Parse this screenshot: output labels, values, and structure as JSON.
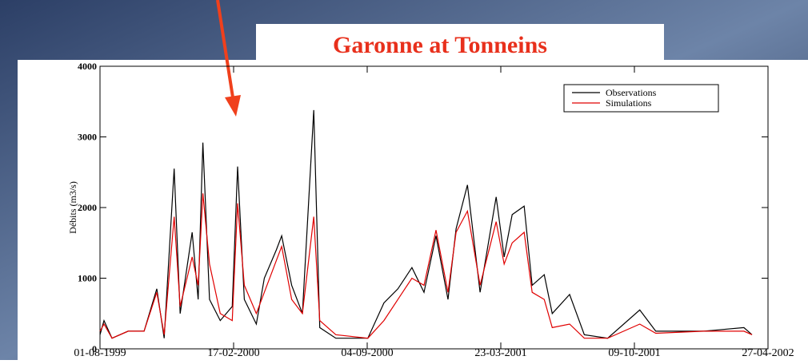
{
  "chart_data": {
    "type": "line",
    "title": "Garonne at Tonneins",
    "y_label": "Débits (m3/s)",
    "x": [
      "01-08-1999",
      "07-08-1999",
      "19-08-1999",
      "12-09-1999",
      "06-10-1999",
      "25-10-1999",
      "05-11-1999",
      "20-11-1999",
      "29-11-1999",
      "17-12-1999",
      "26-12-1999",
      "02-01-2000",
      "12-01-2000",
      "28-01-2000",
      "15-02-2000",
      "23-02-2000",
      "04-03-2000",
      "22-03-2000",
      "03-04-2000",
      "21-04-2000",
      "29-04-2000",
      "14-05-2000",
      "30-05-2000",
      "16-06-2000",
      "25-06-2000",
      "19-07-2000",
      "05-09-2000",
      "29-09-2000",
      "20-10-2000",
      "10-11-2000",
      "28-11-2000",
      "16-12-2000",
      "03-01-2001",
      "15-01-2001",
      "01-02-2001",
      "20-02-2001",
      "16-03-2001",
      "28-03-2001",
      "09-04-2001",
      "27-04-2001",
      "09-05-2001",
      "27-05-2001",
      "08-06-2001",
      "04-07-2001",
      "26-07-2001",
      "30-08-2001",
      "17-10-2001",
      "10-11-2001",
      "21-01-2002",
      "22-03-2002",
      "03-04-2002"
    ],
    "series": [
      {
        "name": "Observations",
        "color": "#000000",
        "values": [
          200,
          400,
          150,
          250,
          250,
          850,
          150,
          2550,
          500,
          1650,
          700,
          2920,
          700,
          400,
          600,
          2580,
          700,
          350,
          1000,
          1400,
          1600,
          900,
          500,
          3380,
          300,
          150,
          150,
          650,
          850,
          1150,
          800,
          1600,
          700,
          1700,
          2320,
          800,
          2150,
          1300,
          1900,
          2020,
          900,
          1050,
          500,
          770,
          200,
          150,
          550,
          250,
          250,
          300,
          200
        ]
      },
      {
        "name": "Simulations",
        "color": "#e00000",
        "values": [
          250,
          350,
          150,
          250,
          250,
          800,
          200,
          1870,
          600,
          1300,
          900,
          2200,
          1200,
          500,
          400,
          2060,
          900,
          500,
          800,
          1250,
          1450,
          700,
          500,
          1870,
          400,
          200,
          150,
          400,
          700,
          1000,
          900,
          1680,
          800,
          1650,
          1950,
          900,
          1800,
          1200,
          1500,
          1650,
          800,
          700,
          300,
          350,
          150,
          150,
          350,
          220,
          250,
          250,
          200
        ]
      }
    ],
    "xlim": [
      "01-08-1999",
      "27-04-2002"
    ],
    "xticks": [
      "01-08-1999",
      "17-02-2000",
      "04-09-2000",
      "23-03-2001",
      "09-10-2001",
      "27-04-2002"
    ],
    "ylim": [
      0,
      4000
    ],
    "yticks": [
      0,
      1000,
      2000,
      3000,
      4000
    ],
    "legend": "upper right"
  }
}
